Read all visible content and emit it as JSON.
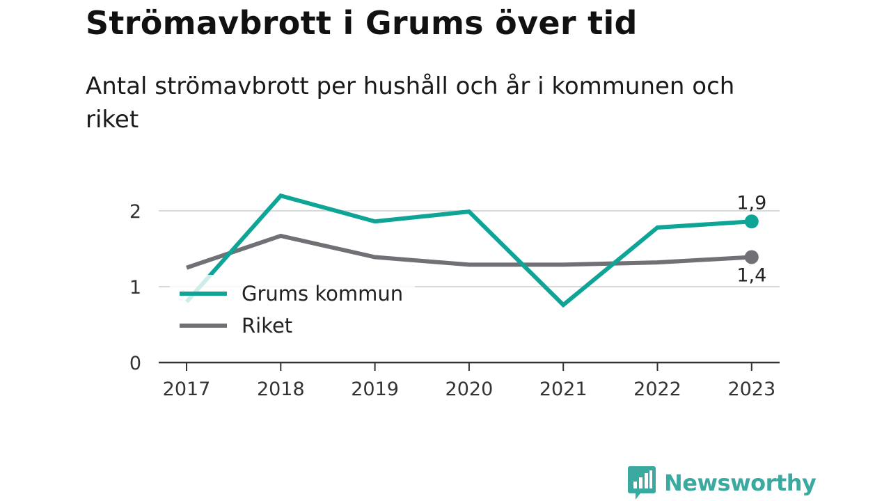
{
  "title": "Strömavbrott i Grums över tid",
  "subtitle": "Antal strömavbrott per hushåll och år i kommunen och riket",
  "brand": {
    "name": "Newsworthy",
    "icon": "bar-chart-speech-bubble-icon",
    "color": "#3aa99f"
  },
  "chart_data": {
    "type": "line",
    "categories": [
      "2017",
      "2018",
      "2019",
      "2020",
      "2021",
      "2022",
      "2023"
    ],
    "series": [
      {
        "name": "Grums kommun",
        "color": "#0ea597",
        "values": [
          0.8,
          2.2,
          1.86,
          1.99,
          0.76,
          1.78,
          1.86
        ],
        "end_label": "1,9"
      },
      {
        "name": "Riket",
        "color": "#707075",
        "values": [
          1.25,
          1.67,
          1.39,
          1.29,
          1.29,
          1.32,
          1.39
        ],
        "end_label": "1,4"
      }
    ],
    "yticks": [
      {
        "value": 0,
        "label": "0"
      },
      {
        "value": 1,
        "label": "1"
      },
      {
        "value": 2,
        "label": "2"
      }
    ],
    "ylim": [
      0,
      2.35
    ],
    "grid": true,
    "legend": "bottom-left"
  }
}
